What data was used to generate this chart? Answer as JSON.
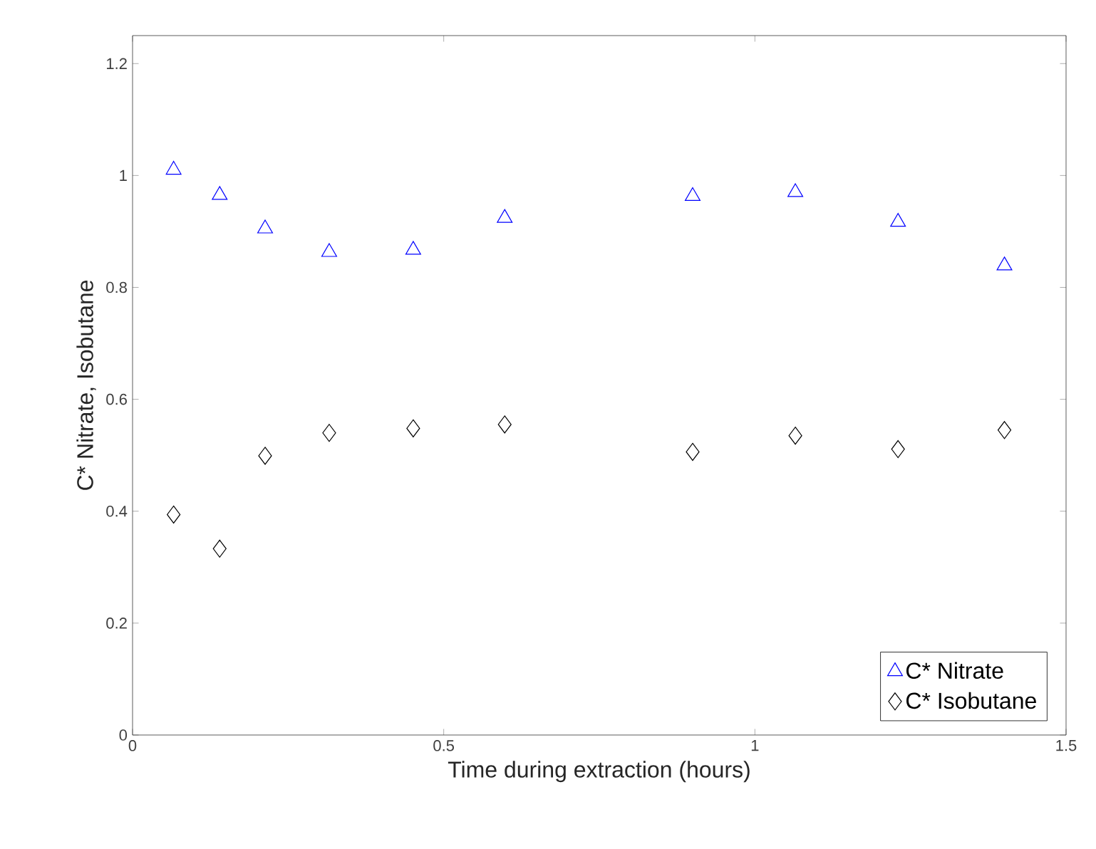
{
  "chart_data": {
    "type": "scatter",
    "xlabel": "Time during extraction (hours)",
    "ylabel": "C* Nitrate, Isobutane",
    "xlim": [
      0,
      1.5
    ],
    "ylim": [
      0,
      1.25
    ],
    "xticks": [
      0,
      0.5,
      1,
      1.5
    ],
    "yticks": [
      0,
      0.2,
      0.4,
      0.6,
      0.8,
      1,
      1.2
    ],
    "legend": "bottom right",
    "grid": false,
    "series": [
      {
        "name": "C* Nitrate",
        "color": "#0000ff",
        "marker": "triangle",
        "x": [
          0.066,
          0.14,
          0.213,
          0.316,
          0.451,
          0.598,
          0.9,
          1.065,
          1.23,
          1.401
        ],
        "values": [
          1.01,
          0.965,
          0.905,
          0.863,
          0.867,
          0.924,
          0.963,
          0.97,
          0.917,
          0.839
        ]
      },
      {
        "name": "C* Isobutane",
        "color": "#000000",
        "marker": "diamond",
        "x": [
          0.066,
          0.14,
          0.213,
          0.316,
          0.451,
          0.598,
          0.9,
          1.065,
          1.23,
          1.401
        ],
        "values": [
          0.394,
          0.333,
          0.499,
          0.54,
          0.548,
          0.555,
          0.506,
          0.535,
          0.511,
          0.545
        ]
      }
    ]
  }
}
